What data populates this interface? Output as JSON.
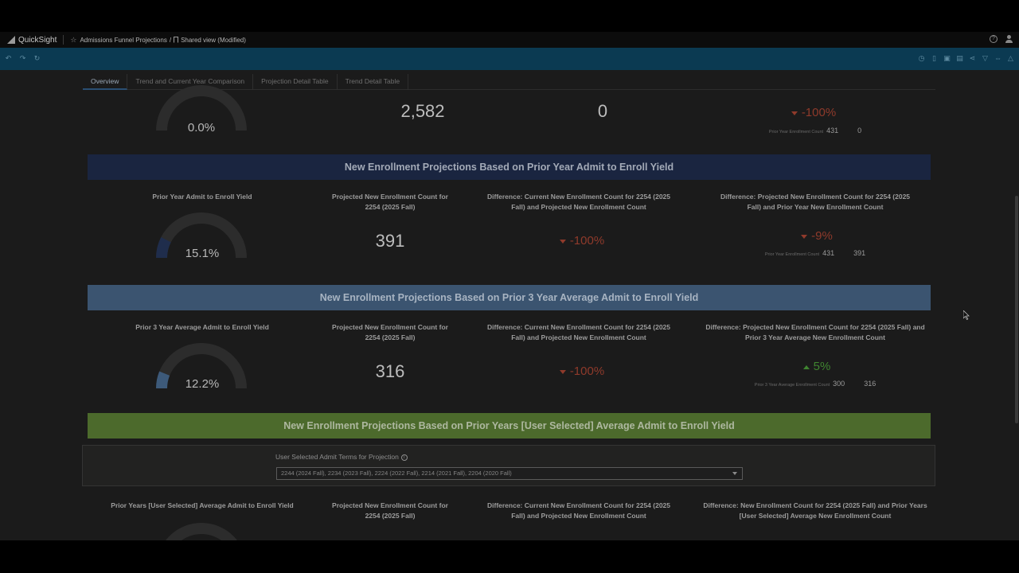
{
  "app": {
    "name": "QuickSight"
  },
  "breadcrumb": {
    "analysis": "Admissions Funnel Projections",
    "separator": "/",
    "view": "Shared view (Modified)"
  },
  "appbar_icons": [
    "help-icon",
    "user-icon"
  ],
  "toolbar": {
    "left_icons": [
      "undo-icon",
      "redo-icon",
      "reset-icon"
    ],
    "right_icons": [
      "schedule-icon",
      "bookmark-icon",
      "export-icon",
      "print-icon",
      "share-icon",
      "filter-icon",
      "fit-width-icon",
      "alert-icon"
    ]
  },
  "tabs": [
    {
      "label": "Overview",
      "active": true
    },
    {
      "label": "Trend and Current Year Comparison",
      "active": false
    },
    {
      "label": "Projection Detail Table",
      "active": false
    },
    {
      "label": "Trend Detail Table",
      "active": false
    }
  ],
  "top_row": {
    "gauge_value": "0.0%",
    "gauge_fill": 0.0,
    "kpi1": "2,582",
    "kpi2": "0",
    "change": "-100%",
    "compare_label": "Prior Year Enrollment Count",
    "compare_a": "431",
    "compare_b": "0"
  },
  "section1": {
    "banner": "New Enrollment Projections Based on Prior Year Admit to Enroll Yield",
    "gauge_title": "Prior Year Admit to Enroll Yield",
    "gauge_value": "15.1%",
    "gauge_fill": 0.151,
    "proj_title": "Projected New Enrollment Count for 2254 (2025 Fall)",
    "proj_value": "391",
    "diff1_title": "Difference: Current New Enrollment Count for 2254 (2025 Fall) and Projected New Enrollment Count",
    "diff1_value": "-100%",
    "diff2_title": "Difference: Projected New Enrollment Count for 2254 (2025 Fall) and Prior Year New Enrollment Count",
    "diff2_value": "-9%",
    "compare_label": "Prior Year Enrollment Count",
    "compare_a": "431",
    "compare_b": "391"
  },
  "section2": {
    "banner": "New Enrollment Projections Based on Prior 3 Year Average Admit to Enroll Yield",
    "gauge_title": "Prior 3 Year Average Admit to Enroll Yield",
    "gauge_value": "12.2%",
    "gauge_fill": 0.122,
    "proj_title": "Projected New Enrollment Count for 2254 (2025 Fall)",
    "proj_value": "316",
    "diff1_title": "Difference: Current New Enrollment Count for 2254 (2025 Fall) and Projected New Enrollment Count",
    "diff1_value": "-100%",
    "diff2_title": "Difference: Projected New Enrollment Count for 2254 (2025 Fall) and Prior 3 Year Average New Enrollment Count",
    "diff2_value": "5%",
    "compare_label": "Prior 3 Year Average Enrollment Count",
    "compare_a": "300",
    "compare_b": "316"
  },
  "section3": {
    "banner": "New Enrollment Projections Based on Prior Years [User Selected] Average Admit to Enroll Yield",
    "filter_label": "User Selected Admit Terms for Projection",
    "filter_value": "2244 (2024 Fall), 2234 (2023 Fall), 2224 (2022 Fall), 2214 (2021 Fall), 2204 (2020 Fall)",
    "gauge_title": "Prior Years [User Selected] Average Admit to Enroll Yield",
    "proj_title": "Projected New Enrollment Count for 2254 (2025 Fall)",
    "diff1_title": "Difference: Current New Enrollment Count for 2254 (2025 Fall) and Projected New Enrollment Count",
    "diff2_title": "Difference: New Enrollment Count for 2254 (2025 Fall) and Prior Years [User Selected] Average New Enrollment Count"
  },
  "colors": {
    "banner_navy": "#1a2540",
    "banner_steel": "#3b5470",
    "banner_olive": "#4c6a2c",
    "negative": "#8f3a2b",
    "positive": "#3f8430",
    "gauge_fill_navy": "#1f2d4c",
    "gauge_fill_steel": "#3d5a7a"
  }
}
